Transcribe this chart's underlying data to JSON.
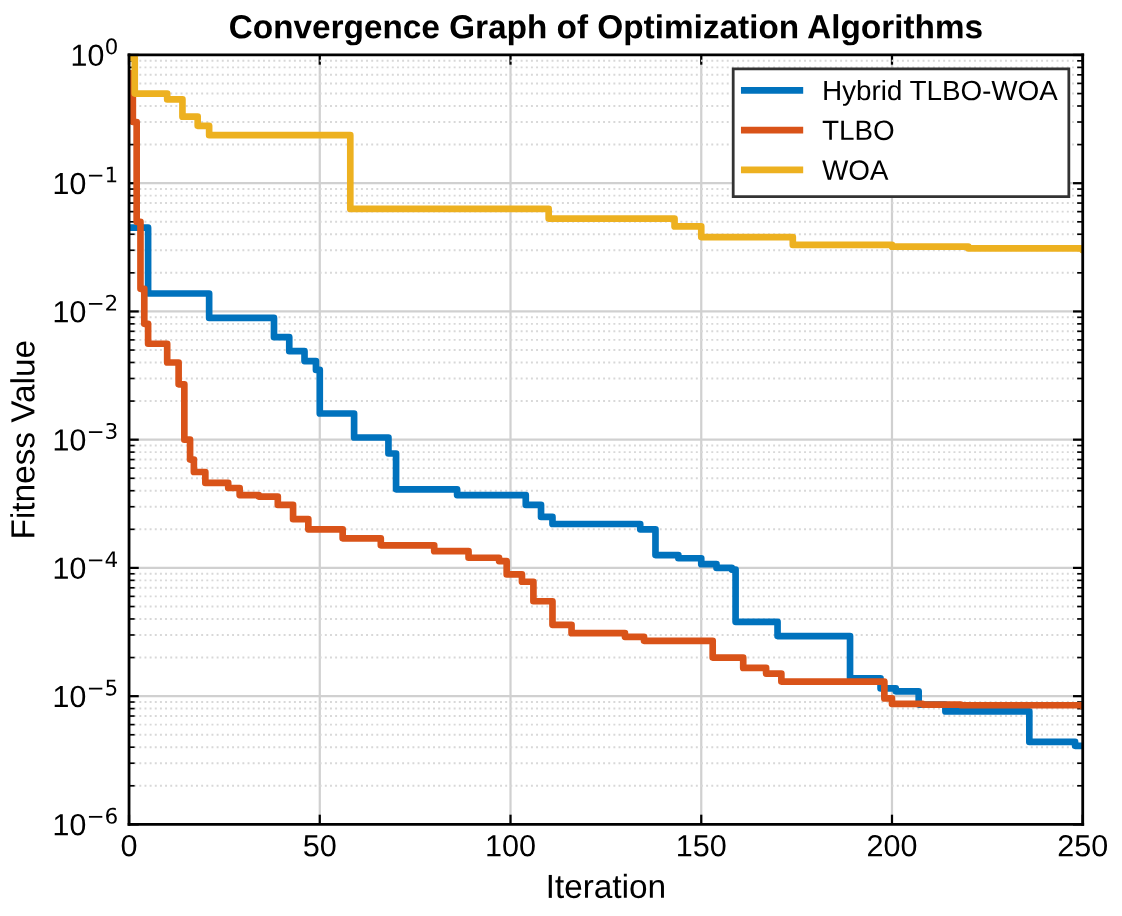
{
  "chart_data": {
    "type": "step",
    "title": "Convergence Graph of Optimization Algorithms",
    "xlabel": "Iteration",
    "ylabel": "Fitness Value",
    "xlim": [
      0,
      250
    ],
    "xticks": [
      0,
      50,
      100,
      150,
      200,
      250
    ],
    "ylim": [
      1e-06,
      1
    ],
    "log": "y",
    "yticks": [
      {
        "value": 1e-06,
        "label": "10$^{−6}$"
      },
      {
        "value": 1e-05,
        "label": "10$^{−5}$"
      },
      {
        "value": 0.0001,
        "label": "10$^{−4}$"
      },
      {
        "value": 0.001,
        "label": "10$^{−3}$"
      },
      {
        "value": 0.01,
        "label": "10$^{−2}$"
      },
      {
        "value": 0.1,
        "label": "10$^{−1}$"
      },
      {
        "value": 1,
        "label": "10$^{0}$"
      }
    ],
    "grid": true,
    "legend": "top right",
    "marker": "none",
    "line_style": "solid",
    "series": [
      {
        "name": "Hybrid TLBO-WOA",
        "color": "#0072bd",
        "x": [
          0,
          5,
          21,
          38,
          42,
          46,
          49,
          50,
          59,
          68,
          70,
          86,
          104,
          108,
          111,
          134,
          138,
          144,
          150,
          154,
          158,
          159,
          170,
          189,
          197,
          201,
          207,
          214,
          236,
          248,
          250
        ],
        "values": [
          0.045,
          0.0138,
          0.0089,
          0.0063,
          0.0049,
          0.0041,
          0.0035,
          0.0016,
          0.00104,
          0.00078,
          0.00041,
          0.00037,
          0.00031,
          0.00025,
          0.00022,
          0.0002,
          0.000126,
          0.000119,
          0.000107,
          0.0001,
          9.7e-05,
          3.8e-05,
          2.94e-05,
          1.38e-05,
          1.15e-05,
          1.09e-05,
          8.6e-06,
          7.6e-06,
          4.4e-06,
          4.1e-06,
          4.1e-06
        ]
      },
      {
        "name": "TLBO",
        "color": "#d95319",
        "x": [
          0,
          1,
          2,
          3,
          4,
          5,
          10,
          13,
          14.5,
          16,
          17,
          20,
          26,
          29,
          34,
          39,
          43,
          47,
          56,
          66,
          80,
          89,
          97,
          99,
          103,
          106,
          111,
          116,
          130,
          135,
          153,
          161,
          167,
          171,
          198,
          200,
          208,
          218,
          250
        ],
        "values": [
          0.72,
          0.3,
          0.05,
          0.015,
          0.008,
          0.0056,
          0.004,
          0.0027,
          0.001,
          0.0007,
          0.00056,
          0.00046,
          0.00042,
          0.00037,
          0.00036,
          0.00031,
          0.00024,
          0.0002,
          0.00017,
          0.00015,
          0.000135,
          0.00012,
          0.000113,
          8.9e-05,
          7.8e-05,
          5.5e-05,
          3.6e-05,
          3.1e-05,
          2.9e-05,
          2.7e-05,
          2e-05,
          1.66e-05,
          1.5e-05,
          1.3e-05,
          9.6e-06,
          8.7e-06,
          8.6e-06,
          8.5e-06,
          8.3e-06
        ]
      },
      {
        "name": "WOA",
        "color": "#edb120",
        "x": [
          0,
          1.5,
          10,
          14,
          18,
          21,
          58,
          110,
          143,
          150,
          174,
          200,
          220,
          250
        ],
        "values": [
          0.95,
          0.5,
          0.45,
          0.33,
          0.28,
          0.237,
          0.063,
          0.053,
          0.046,
          0.038,
          0.033,
          0.032,
          0.031,
          0.03
        ]
      }
    ]
  }
}
